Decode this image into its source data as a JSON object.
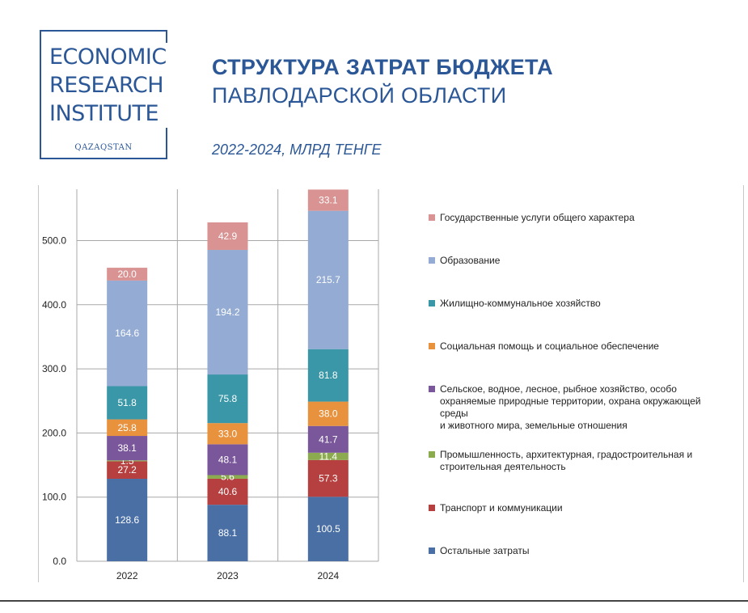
{
  "logo": {
    "lines": [
      "ECONOMIC",
      "RESEARCH",
      "INSTITUTE"
    ],
    "sub": "QAZAQSTAN",
    "color": "#2b5797"
  },
  "header": {
    "title_bold": "СТРУКТУРА ЗАТРАТ БЮДЖЕТА",
    "title_regular": "ПАВЛОДАРСКОЙ ОБЛАСТИ",
    "subtitle": "2022-2024, МЛРД ТЕНГЕ"
  },
  "chart_data": {
    "type": "bar",
    "stacked": true,
    "categories": [
      "2022",
      "2023",
      "2024"
    ],
    "ylim": [
      0,
      580
    ],
    "yticks": [
      0,
      100,
      200,
      300,
      400,
      500
    ],
    "ytick_labels": [
      "0.0",
      "100.0",
      "200.0",
      "300.0",
      "400.0",
      "500.0"
    ],
    "grid": true,
    "legend_position": "right",
    "series": [
      {
        "name": "Остальные затраты",
        "color": "#4a6fa5",
        "values": [
          128.6,
          88.1,
          100.5
        ],
        "labels": [
          "128.6",
          "88.1",
          "100.5"
        ],
        "label_color": "#ffffff"
      },
      {
        "name": "Транспорт и коммуникации",
        "color": "#b5403f",
        "values": [
          27.2,
          40.6,
          57.3
        ],
        "labels": [
          "27.2",
          "40.6",
          "57.3"
        ],
        "label_color": "#ffffff"
      },
      {
        "name": "Промышленность, архитектурная, градостроительная и строительная деятельность",
        "color": "#8bab4e",
        "values": [
          1.5,
          5.6,
          11.4
        ],
        "labels": [
          "1.5",
          "5.6",
          "11.4"
        ],
        "label_color": "#ffffff"
      },
      {
        "name": "Сельское, водное, лесное, рыбное хозяйство, особо охраняемые природные территории, охрана окружающей среды и животного мира, земельные отношения",
        "color": "#7a579b",
        "values": [
          38.1,
          48.1,
          41.7
        ],
        "labels": [
          "38.1",
          "48.1",
          "41.7"
        ],
        "label_color": "#ffffff"
      },
      {
        "name": "Социальная помощь и социальное обеспечение",
        "color": "#e8923e",
        "values": [
          25.8,
          33.0,
          38.0
        ],
        "labels": [
          "25.8",
          "33.0",
          "38.0"
        ],
        "label_color": "#ffffff"
      },
      {
        "name": "Жилищно-коммунальное хозяйство",
        "color": "#3a97a7",
        "values": [
          51.8,
          75.8,
          81.8
        ],
        "labels": [
          "51.8",
          "75.8",
          "81.8"
        ],
        "label_color": "#ffffff"
      },
      {
        "name": "Образование",
        "color": "#94abd3",
        "values": [
          164.6,
          194.2,
          215.7
        ],
        "labels": [
          "164.6",
          "194.2",
          "215.7"
        ],
        "label_color": "#ffffff"
      },
      {
        "name": "Государственные услуги общего характера",
        "color": "#d99393",
        "values": [
          20.0,
          42.9,
          33.1
        ],
        "labels": [
          "20.0",
          "42.9",
          "33.1"
        ],
        "label_color": "#ffffff"
      }
    ],
    "legend_order": [
      7,
      6,
      5,
      4,
      3,
      2,
      1,
      0
    ],
    "legend_lines": [
      [
        "Государственные услуги общего характера"
      ],
      [
        "Образование"
      ],
      [
        "Жилищно-коммунальное хозяйство"
      ],
      [
        "Социальная помощь и социальное обеспечение"
      ],
      [
        "Сельское, водное, лесное, рыбное хозяйство, особо",
        "охраняемые природные территории, охрана окружающей среды",
        "и животного мира, земельные отношения"
      ],
      [
        "Промышленность, архитектурная, градостроительная и",
        "строительная деятельность"
      ],
      [
        "Транспорт и коммуникации"
      ],
      [
        "Остальные затраты"
      ]
    ]
  }
}
